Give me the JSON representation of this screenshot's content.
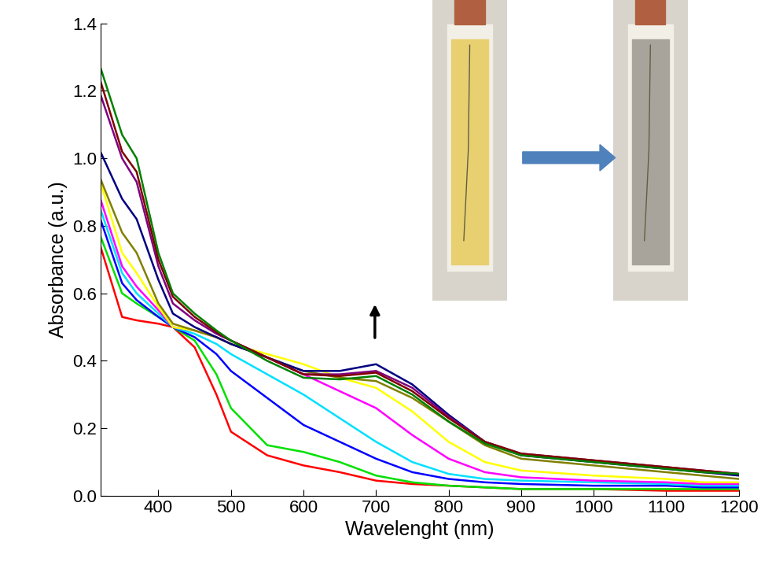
{
  "chart_data": {
    "type": "line",
    "x_label": "Wavelenght (nm)",
    "y_label": "Absorbance (a.u.)",
    "x": [
      320,
      350,
      370,
      400,
      420,
      450,
      480,
      500,
      550,
      600,
      650,
      700,
      750,
      800,
      850,
      900,
      1000,
      1100,
      1150,
      1200
    ],
    "series": [
      {
        "color": "#ff0000",
        "values": [
          0.74,
          0.53,
          0.52,
          0.51,
          0.5,
          0.44,
          0.3,
          0.19,
          0.12,
          0.09,
          0.07,
          0.045,
          0.035,
          0.03,
          0.025,
          0.02,
          0.02,
          0.015,
          0.015,
          0.015
        ]
      },
      {
        "color": "#00e000",
        "values": [
          0.77,
          0.6,
          0.57,
          0.53,
          0.5,
          0.46,
          0.36,
          0.26,
          0.15,
          0.13,
          0.1,
          0.06,
          0.04,
          0.03,
          0.025,
          0.02,
          0.02,
          0.02,
          0.02,
          0.02
        ]
      },
      {
        "color": "#0000ff",
        "values": [
          0.82,
          0.63,
          0.58,
          0.53,
          0.5,
          0.47,
          0.42,
          0.37,
          0.29,
          0.21,
          0.16,
          0.11,
          0.07,
          0.05,
          0.04,
          0.035,
          0.03,
          0.03,
          0.025,
          0.025
        ]
      },
      {
        "color": "#00e0ff",
        "values": [
          0.85,
          0.66,
          0.6,
          0.54,
          0.5,
          0.48,
          0.45,
          0.42,
          0.36,
          0.3,
          0.23,
          0.16,
          0.1,
          0.065,
          0.05,
          0.045,
          0.04,
          0.035,
          0.03,
          0.03
        ]
      },
      {
        "color": "#ff00ff",
        "values": [
          0.88,
          0.68,
          0.62,
          0.55,
          0.5,
          0.49,
          0.47,
          0.45,
          0.41,
          0.36,
          0.31,
          0.26,
          0.18,
          0.11,
          0.07,
          0.055,
          0.045,
          0.04,
          0.035,
          0.035
        ]
      },
      {
        "color": "#ffff00",
        "values": [
          0.93,
          0.72,
          0.66,
          0.56,
          0.5,
          0.49,
          0.47,
          0.45,
          0.42,
          0.39,
          0.35,
          0.32,
          0.25,
          0.16,
          0.1,
          0.075,
          0.06,
          0.05,
          0.04,
          0.04
        ]
      },
      {
        "color": "#808000",
        "values": [
          0.94,
          0.78,
          0.72,
          0.57,
          0.51,
          0.49,
          0.47,
          0.45,
          0.41,
          0.37,
          0.35,
          0.34,
          0.29,
          0.22,
          0.15,
          0.11,
          0.09,
          0.07,
          0.06,
          0.05
        ]
      },
      {
        "color": "#000080",
        "values": [
          1.02,
          0.88,
          0.82,
          0.64,
          0.54,
          0.5,
          0.47,
          0.45,
          0.41,
          0.37,
          0.37,
          0.39,
          0.33,
          0.24,
          0.16,
          0.12,
          0.1,
          0.08,
          0.07,
          0.06
        ]
      },
      {
        "color": "#800080",
        "values": [
          1.19,
          1.0,
          0.93,
          0.68,
          0.57,
          0.52,
          0.48,
          0.46,
          0.41,
          0.36,
          0.36,
          0.37,
          0.32,
          0.235,
          0.16,
          0.125,
          0.105,
          0.085,
          0.075,
          0.065
        ]
      },
      {
        "color": "#800000",
        "values": [
          1.23,
          1.02,
          0.96,
          0.7,
          0.59,
          0.53,
          0.485,
          0.46,
          0.41,
          0.36,
          0.355,
          0.365,
          0.31,
          0.23,
          0.16,
          0.125,
          0.105,
          0.085,
          0.075,
          0.065
        ]
      },
      {
        "color": "#008000",
        "values": [
          1.27,
          1.07,
          1.0,
          0.72,
          0.6,
          0.54,
          0.49,
          0.46,
          0.4,
          0.35,
          0.345,
          0.355,
          0.3,
          0.22,
          0.155,
          0.12,
          0.1,
          0.08,
          0.07,
          0.065
        ]
      }
    ],
    "xlim": [
      320,
      1200
    ],
    "xticks": [
      400,
      500,
      600,
      700,
      800,
      900,
      1000,
      1100,
      1200
    ],
    "ylim": [
      0,
      1.4
    ],
    "yticks": [
      {
        "value": 0,
        "label": "0.0"
      },
      0.2,
      0.4,
      0.6,
      0.8,
      {
        "value": 1,
        "label": "1.0"
      },
      1.2,
      1.4
    ],
    "grid": false
  }
}
